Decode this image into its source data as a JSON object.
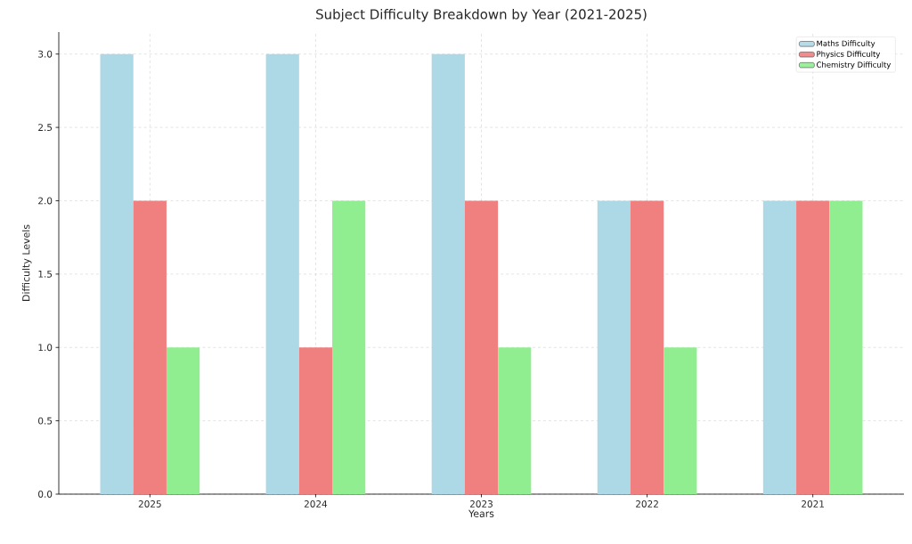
{
  "chart_data": {
    "type": "bar",
    "title": "Subject Difficulty Breakdown by Year (2021-2025)",
    "xlabel": "Years",
    "ylabel": "Difficulty Levels",
    "categories": [
      "2025",
      "2024",
      "2023",
      "2022",
      "2021"
    ],
    "series": [
      {
        "name": "Maths Difficulty",
        "color": "#add8e6",
        "values": [
          3,
          3,
          3,
          2,
          2
        ]
      },
      {
        "name": "Physics Difficulty",
        "color": "#f08080",
        "values": [
          2,
          1,
          2,
          2,
          2
        ]
      },
      {
        "name": "Chemistry Difficulty",
        "color": "#90ee90",
        "values": [
          1,
          2,
          1,
          1,
          2
        ]
      }
    ],
    "ylim": [
      0,
      3.15
    ],
    "yticks": [
      {
        "value": 0,
        "label": "0.0"
      },
      {
        "value": 0.5,
        "label": "0.5"
      },
      {
        "value": 1,
        "label": "1.0"
      },
      {
        "value": 1.5,
        "label": "1.5"
      },
      {
        "value": 2,
        "label": "2.0"
      },
      {
        "value": 2.5,
        "label": "2.5"
      },
      {
        "value": 3,
        "label": "3.0"
      }
    ],
    "grid": true,
    "legend": "top right"
  }
}
